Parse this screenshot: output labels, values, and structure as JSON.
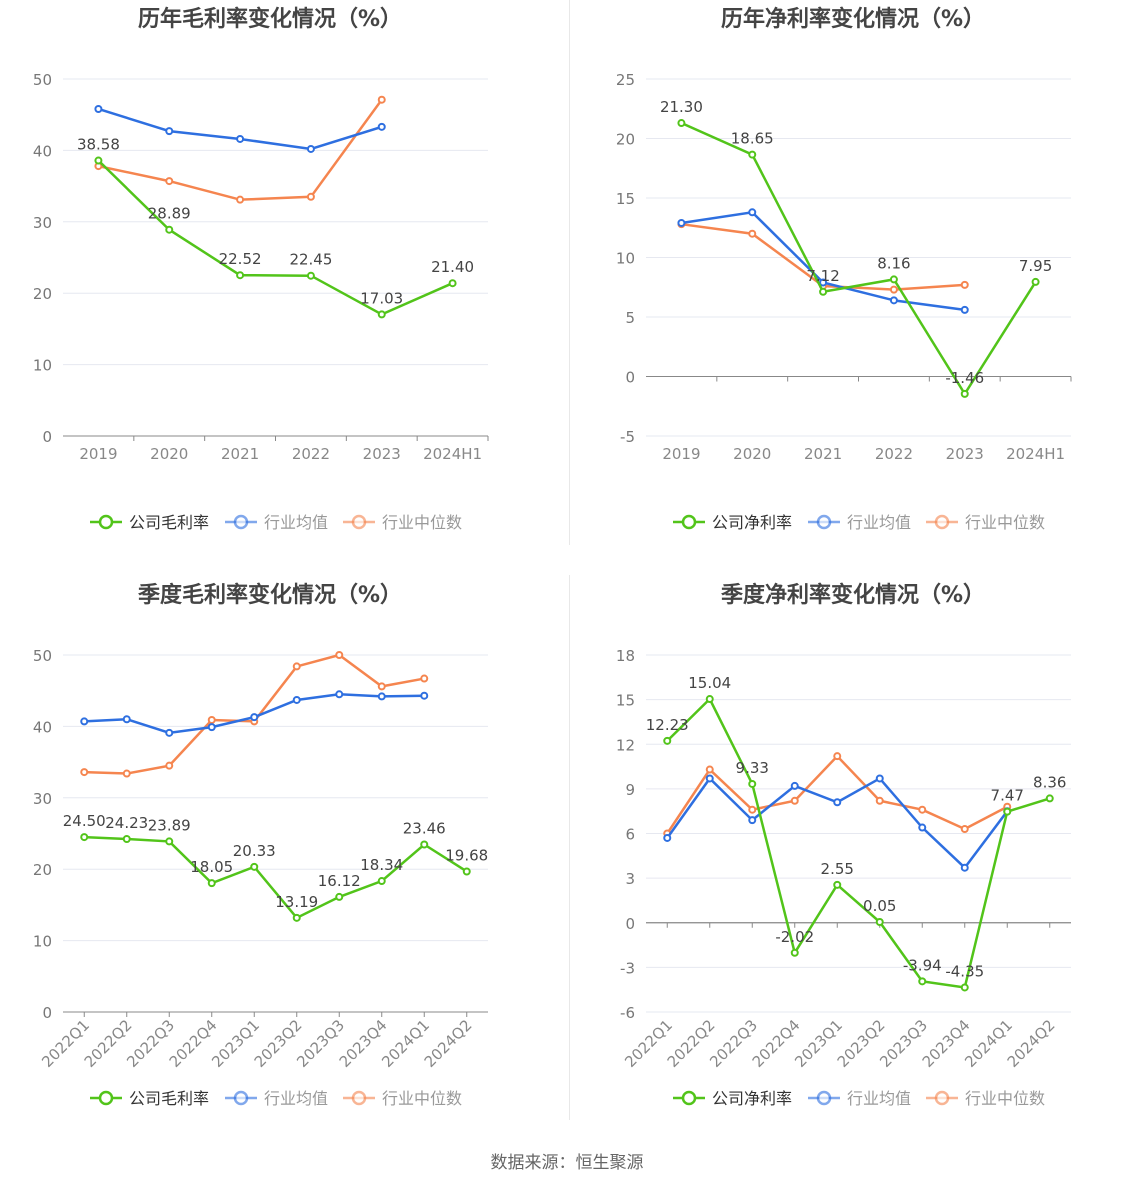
{
  "source": "数据来源：恒生聚源",
  "colors": {
    "company": "#52c41a",
    "avg": "#2e6fe0",
    "median": "#f5854f",
    "grid": "#e6e8f0",
    "axis": "#666666"
  },
  "chart_data": [
    {
      "type": "line",
      "title": "历年毛利率变化情况（%）",
      "categories": [
        "2019",
        "2020",
        "2021",
        "2022",
        "2023",
        "2024H1"
      ],
      "ylim": [
        0,
        50
      ],
      "yticks": [
        0,
        10,
        20,
        30,
        40,
        50
      ],
      "grid": true,
      "legend": "bottom",
      "rotate_x": false,
      "series": [
        {
          "name": "公司毛利率",
          "key": "company",
          "values": [
            38.58,
            28.89,
            22.52,
            22.45,
            17.03,
            21.4
          ],
          "labels": true
        },
        {
          "name": "行业均值",
          "key": "avg",
          "values": [
            45.8,
            42.7,
            41.6,
            40.2,
            43.3,
            null
          ]
        },
        {
          "name": "行业中位数",
          "key": "median",
          "values": [
            37.8,
            35.7,
            33.1,
            33.5,
            47.1,
            null
          ]
        }
      ]
    },
    {
      "type": "line",
      "title": "历年净利率变化情况（%）",
      "categories": [
        "2019",
        "2020",
        "2021",
        "2022",
        "2023",
        "2024H1"
      ],
      "ylim": [
        -5,
        25
      ],
      "yticks": [
        -5,
        0,
        5,
        10,
        15,
        20,
        25
      ],
      "grid": true,
      "legend": "bottom",
      "rotate_x": false,
      "series": [
        {
          "name": "公司净利率",
          "key": "company",
          "values": [
            21.3,
            18.65,
            7.12,
            8.16,
            -1.46,
            7.95
          ],
          "labels": true
        },
        {
          "name": "行业均值",
          "key": "avg",
          "values": [
            12.9,
            13.8,
            7.9,
            6.4,
            5.6,
            null
          ]
        },
        {
          "name": "行业中位数",
          "key": "median",
          "values": [
            12.8,
            12.0,
            7.6,
            7.3,
            7.7,
            null
          ]
        }
      ]
    },
    {
      "type": "line",
      "title": "季度毛利率变化情况（%）",
      "categories": [
        "2022Q1",
        "2022Q2",
        "2022Q3",
        "2022Q4",
        "2023Q1",
        "2023Q2",
        "2023Q3",
        "2023Q4",
        "2024Q1",
        "2024Q2"
      ],
      "ylim": [
        0,
        50
      ],
      "yticks": [
        0,
        10,
        20,
        30,
        40,
        50
      ],
      "grid": true,
      "legend": "bottom",
      "rotate_x": true,
      "series": [
        {
          "name": "公司毛利率",
          "key": "company",
          "values": [
            24.5,
            24.23,
            23.89,
            18.05,
            20.33,
            13.19,
            16.12,
            18.34,
            23.46,
            19.68
          ],
          "labels": true
        },
        {
          "name": "行业均值",
          "key": "avg",
          "values": [
            40.7,
            41.0,
            39.1,
            39.9,
            41.3,
            43.7,
            44.5,
            44.2,
            44.3,
            null
          ]
        },
        {
          "name": "行业中位数",
          "key": "median",
          "values": [
            33.6,
            33.4,
            34.5,
            40.9,
            40.7,
            48.4,
            50.0,
            45.6,
            46.7,
            null
          ]
        }
      ]
    },
    {
      "type": "line",
      "title": "季度净利率变化情况（%）",
      "categories": [
        "2022Q1",
        "2022Q2",
        "2022Q3",
        "2022Q4",
        "2023Q1",
        "2023Q2",
        "2023Q3",
        "2023Q4",
        "2024Q1",
        "2024Q2"
      ],
      "ylim": [
        -6,
        18
      ],
      "yticks": [
        -6,
        -3,
        0,
        3,
        6,
        9,
        12,
        15,
        18
      ],
      "grid": true,
      "legend": "bottom",
      "rotate_x": true,
      "series": [
        {
          "name": "公司净利率",
          "key": "company",
          "values": [
            12.23,
            15.04,
            9.33,
            -2.02,
            2.55,
            0.05,
            -3.94,
            -4.35,
            7.47,
            8.36
          ],
          "labels": true
        },
        {
          "name": "行业均值",
          "key": "avg",
          "values": [
            5.7,
            9.7,
            6.9,
            9.2,
            8.1,
            9.7,
            6.4,
            3.7,
            7.5,
            null
          ]
        },
        {
          "name": "行业中位数",
          "key": "median",
          "values": [
            6.0,
            10.3,
            7.6,
            8.2,
            11.2,
            8.2,
            7.6,
            6.3,
            7.8,
            null
          ]
        }
      ]
    }
  ]
}
